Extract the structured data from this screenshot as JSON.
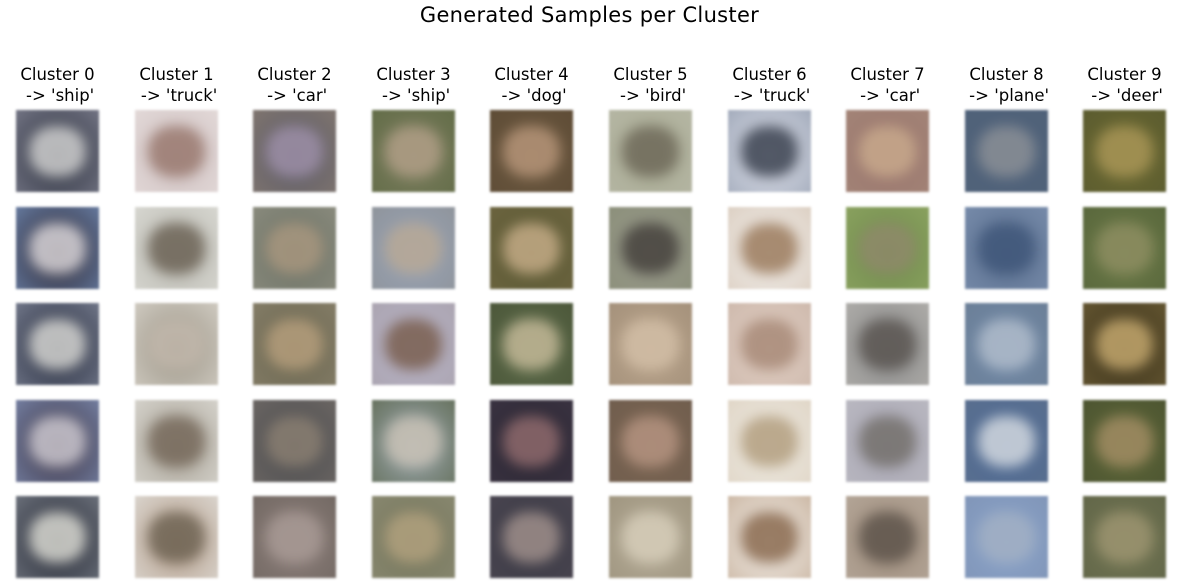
{
  "title": "Generated Samples per Cluster",
  "clusters": [
    {
      "line1": "Cluster 0",
      "line2": " -> 'ship'",
      "tiles": [
        {
          "bg": "#2a2f3c",
          "blob": "#cfcfcf",
          "edge": "#7f8090"
        },
        {
          "bg": "#2a2530",
          "blob": "#d8d4d8",
          "edge": "#6f87b0"
        },
        {
          "bg": "#22283a",
          "blob": "#d5d5d2",
          "edge": "#7e8496"
        },
        {
          "bg": "#3a3242",
          "blob": "#cbc7cf",
          "edge": "#7d8bb0"
        },
        {
          "bg": "#222632",
          "blob": "#d9d9d2",
          "edge": "#777c86"
        }
      ]
    },
    {
      "line1": "Cluster 1",
      "line2": " -> 'truck'",
      "tiles": [
        {
          "bg": "#cdbfbf",
          "blob": "#9a7a70",
          "edge": "#e6dddc"
        },
        {
          "bg": "#b7b6ae",
          "blob": "#6d6457",
          "edge": "#dcdcd6"
        },
        {
          "bg": "#9c9688",
          "blob": "#c1b7ab",
          "edge": "#d7d2c9"
        },
        {
          "bg": "#a7a195",
          "blob": "#776a5c",
          "edge": "#dcdad4"
        },
        {
          "bg": "#b39d8a",
          "blob": "#6f6454",
          "edge": "#e0ddd8"
        }
      ]
    },
    {
      "line1": "Cluster 2",
      "line2": " -> 'car'",
      "tiles": [
        {
          "bg": "#5d5c68",
          "blob": "#9d8fa7",
          "edge": "#857970"
        },
        {
          "bg": "#6c7266",
          "blob": "#a8977f",
          "edge": "#8e8e80"
        },
        {
          "bg": "#6a6650",
          "blob": "#b59e7c",
          "edge": "#88806a"
        },
        {
          "bg": "#4b4c4f",
          "blob": "#8a7f72",
          "edge": "#706a66"
        },
        {
          "bg": "#8c7e7a",
          "blob": "#a89a95",
          "edge": "#6f6660"
        }
      ]
    },
    {
      "line1": "Cluster 3",
      "line2": " -> 'ship'",
      "tiles": [
        {
          "bg": "#7b7d5f",
          "blob": "#b09e86",
          "edge": "#5f6a44"
        },
        {
          "bg": "#98a3b6",
          "blob": "#b8a996",
          "edge": "#8e9297"
        },
        {
          "bg": "#b7b3c6",
          "blob": "#7a5f50",
          "edge": "#a9a2ad"
        },
        {
          "bg": "#9aa6ad",
          "blob": "#c9c2b6",
          "edge": "#5f6a52"
        },
        {
          "bg": "#75765c",
          "blob": "#b1a17e",
          "edge": "#8b8a72"
        }
      ]
    },
    {
      "line1": "Cluster 4",
      "line2": " -> 'dog'",
      "tiles": [
        {
          "bg": "#6c5941",
          "blob": "#b59478",
          "edge": "#5c4a34"
        },
        {
          "bg": "#5b5a35",
          "blob": "#c4ab86",
          "edge": "#6e6540"
        },
        {
          "bg": "#5b6b4a",
          "blob": "#c3b897",
          "edge": "#4a5437"
        },
        {
          "bg": "#2b2733",
          "blob": "#8f6a6d",
          "edge": "#3c3443"
        },
        {
          "bg": "#3a3a45",
          "blob": "#9f8f8b",
          "edge": "#4b4651"
        }
      ]
    },
    {
      "line1": "Cluster 5",
      "line2": " -> 'bird'",
      "tiles": [
        {
          "bg": "#a8aa93",
          "blob": "#6f6a5a",
          "edge": "#b7b8a6"
        },
        {
          "bg": "#98998b",
          "blob": "#46423d",
          "edge": "#8a8e78"
        },
        {
          "bg": "#b9a48c",
          "blob": "#d2bea6",
          "edge": "#a18e78"
        },
        {
          "bg": "#7a6452",
          "blob": "#b49380",
          "edge": "#6f5d4d"
        },
        {
          "bg": "#b4ab97",
          "blob": "#d6cdb9",
          "edge": "#9c927c"
        }
      ]
    },
    {
      "line1": "Cluster 6",
      "line2": " -> 'truck'",
      "tiles": [
        {
          "bg": "#dde0ea",
          "blob": "#3b4250",
          "edge": "#9aa3b4"
        },
        {
          "bg": "#f2efec",
          "blob": "#9b7b5d",
          "edge": "#d9cbbd"
        },
        {
          "bg": "#e1cfc4",
          "blob": "#a88a78",
          "edge": "#cbb6a9"
        },
        {
          "bg": "#eeeae2",
          "blob": "#b39f80",
          "edge": "#ded3c3"
        },
        {
          "bg": "#f3efea",
          "blob": "#8a6a4f",
          "edge": "#c6b09b"
        }
      ]
    },
    {
      "line1": "Cluster 7",
      "line2": " -> 'car'",
      "tiles": [
        {
          "bg": "#9a766e",
          "blob": "#c8a98c",
          "edge": "#a48678"
        },
        {
          "bg": "#718c4e",
          "blob": "#8f8a6a",
          "edge": "#8da461"
        },
        {
          "bg": "#8a8a8a",
          "blob": "#5b5652",
          "edge": "#b3b1ad"
        },
        {
          "bg": "#a7a5b2",
          "blob": "#75716d",
          "edge": "#bcbbc3"
        },
        {
          "bg": "#9d8c7c",
          "blob": "#5f554c",
          "edge": "#b7a99b"
        }
      ]
    },
    {
      "line1": "Cluster 8",
      "line2": " -> 'plane'",
      "tiles": [
        {
          "bg": "#51637b",
          "blob": "#8a8f96",
          "edge": "#4f6178"
        },
        {
          "bg": "#5a6f8e",
          "blob": "#40577a",
          "edge": "#7b8fae"
        },
        {
          "bg": "#7088a6",
          "blob": "#b0bccb",
          "edge": "#6b7e95"
        },
        {
          "bg": "#4f6b95",
          "blob": "#d2d8df",
          "edge": "#5b6f8d"
        },
        {
          "bg": "#8aa3c9",
          "blob": "#a2b0c4",
          "edge": "#7f93b5"
        }
      ]
    },
    {
      "line1": "Cluster 9",
      "line2": " -> 'deer'",
      "tiles": [
        {
          "bg": "#6c6a33",
          "blob": "#a89556",
          "edge": "#58592e"
        },
        {
          "bg": "#6b7a48",
          "blob": "#8d8d61",
          "edge": "#56643a"
        },
        {
          "bg": "#3c331c",
          "blob": "#c3a76d",
          "edge": "#695a33"
        },
        {
          "bg": "#5d6638",
          "blob": "#a18c63",
          "edge": "#4a5230"
        },
        {
          "bg": "#727553",
          "blob": "#9c9470",
          "edge": "#5f6447"
        }
      ]
    }
  ]
}
